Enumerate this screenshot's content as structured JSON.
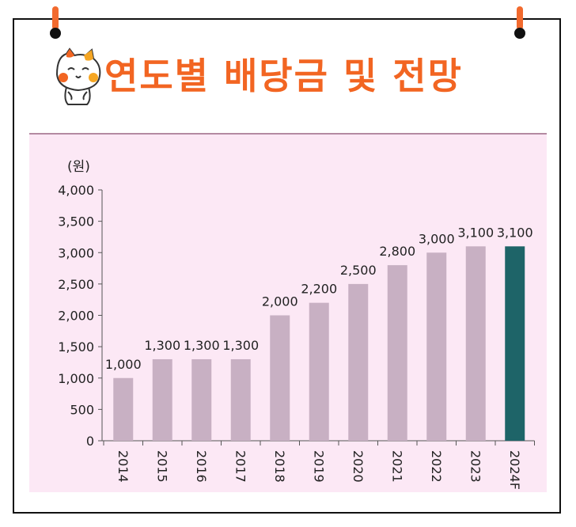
{
  "header": {
    "title": "연도별 배당금 및 전망",
    "mascot_icon": "cat-mascot-icon",
    "pin_icon": "pushpin-icon"
  },
  "chart_data": {
    "type": "bar",
    "title": "연도별 배당금 및 전망",
    "ylabel": "(원)",
    "xlabel": "",
    "ylim": [
      0,
      4000
    ],
    "yticks": [
      0,
      500,
      1000,
      1500,
      2000,
      2500,
      3000,
      3500,
      4000
    ],
    "ytick_labels": [
      "0",
      "500",
      "1,000",
      "1,500",
      "2,000",
      "2,500",
      "3,000",
      "3,500",
      "4,000"
    ],
    "categories": [
      "2014",
      "2015",
      "2016",
      "2017",
      "2018",
      "2019",
      "2020",
      "2021",
      "2022",
      "2023",
      "2024F"
    ],
    "values": [
      1000,
      1300,
      1300,
      1300,
      2000,
      2200,
      2500,
      2800,
      3000,
      3100,
      3100
    ],
    "data_labels": [
      "1,000",
      "1,300",
      "1,300",
      "1,300",
      "2,000",
      "2,200",
      "2,500",
      "2,800",
      "3,000",
      "3,100",
      "3,100"
    ],
    "grid": false,
    "colors": {
      "actual": "#c8b0c3",
      "forecast": "#1e6468",
      "background": "#fce8f5",
      "title": "#f26522"
    }
  }
}
